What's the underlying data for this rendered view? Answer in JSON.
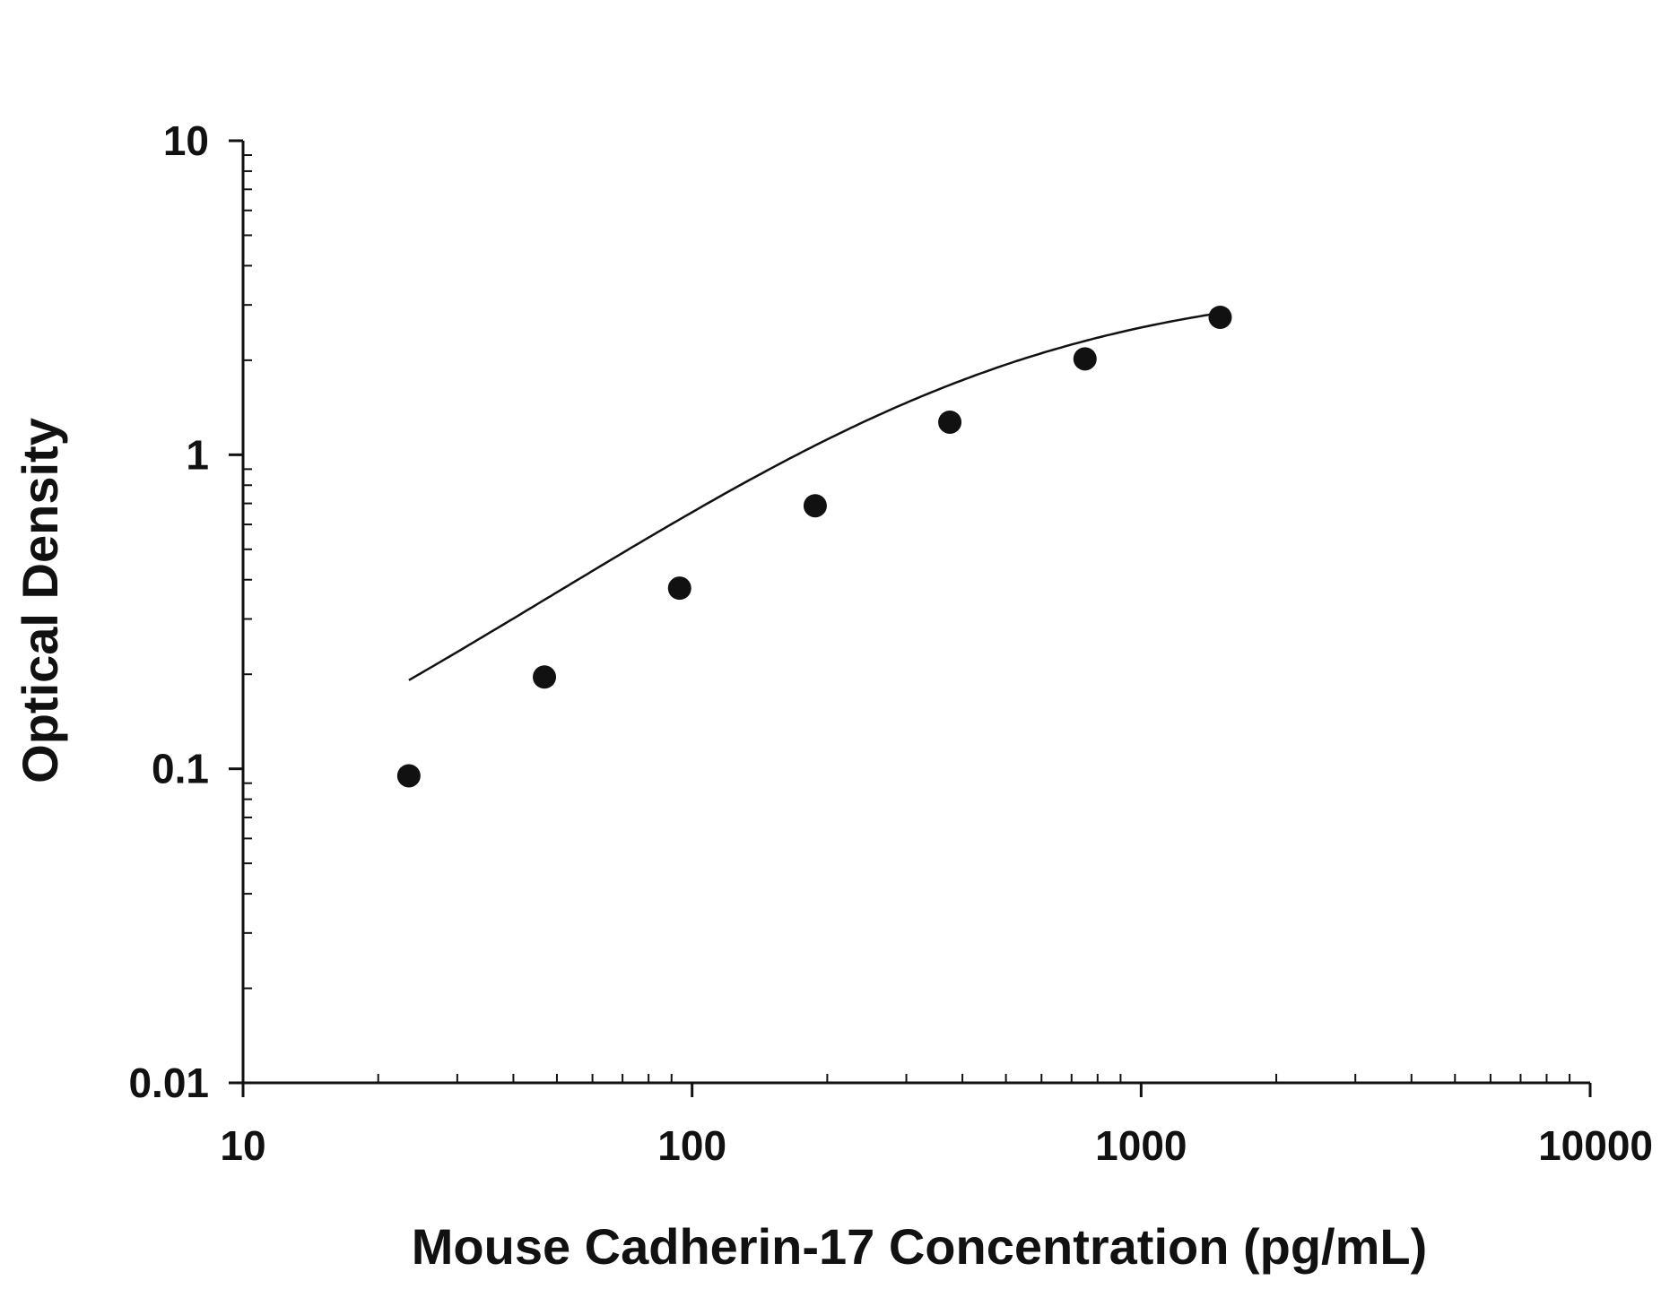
{
  "chart_data": {
    "type": "scatter",
    "title": "",
    "xlabel": "Mouse Cadherin-17 Concentration (pg/mL)",
    "ylabel": "Optical Density",
    "xscale": "log",
    "yscale": "log",
    "xlim": [
      10,
      10000
    ],
    "ylim": [
      0.01,
      10
    ],
    "x_ticks": [
      10,
      100,
      1000,
      10000
    ],
    "x_tick_labels": [
      "10",
      "100",
      "1000",
      "10000"
    ],
    "y_ticks": [
      0.01,
      0.1,
      1,
      10
    ],
    "y_tick_labels": [
      "0.01",
      "0.1",
      "1",
      "10"
    ],
    "grid": false,
    "legend": "none",
    "series": [
      {
        "x": [
          23.4,
          46.9,
          93.8,
          188,
          375,
          750,
          1500
        ],
        "y": [
          0.095,
          0.196,
          0.376,
          0.688,
          1.27,
          2.02,
          2.74
        ],
        "marker": "filled-circle",
        "color": "#111111"
      }
    ],
    "fit_curve": {
      "type": "four-parameter-logistic",
      "x_range": [
        23.4,
        1500
      ],
      "color": "#111111",
      "params": {
        "bottom": 0.035,
        "top": 3.6,
        "ec50": 440,
        "hill": 1.05
      }
    }
  }
}
